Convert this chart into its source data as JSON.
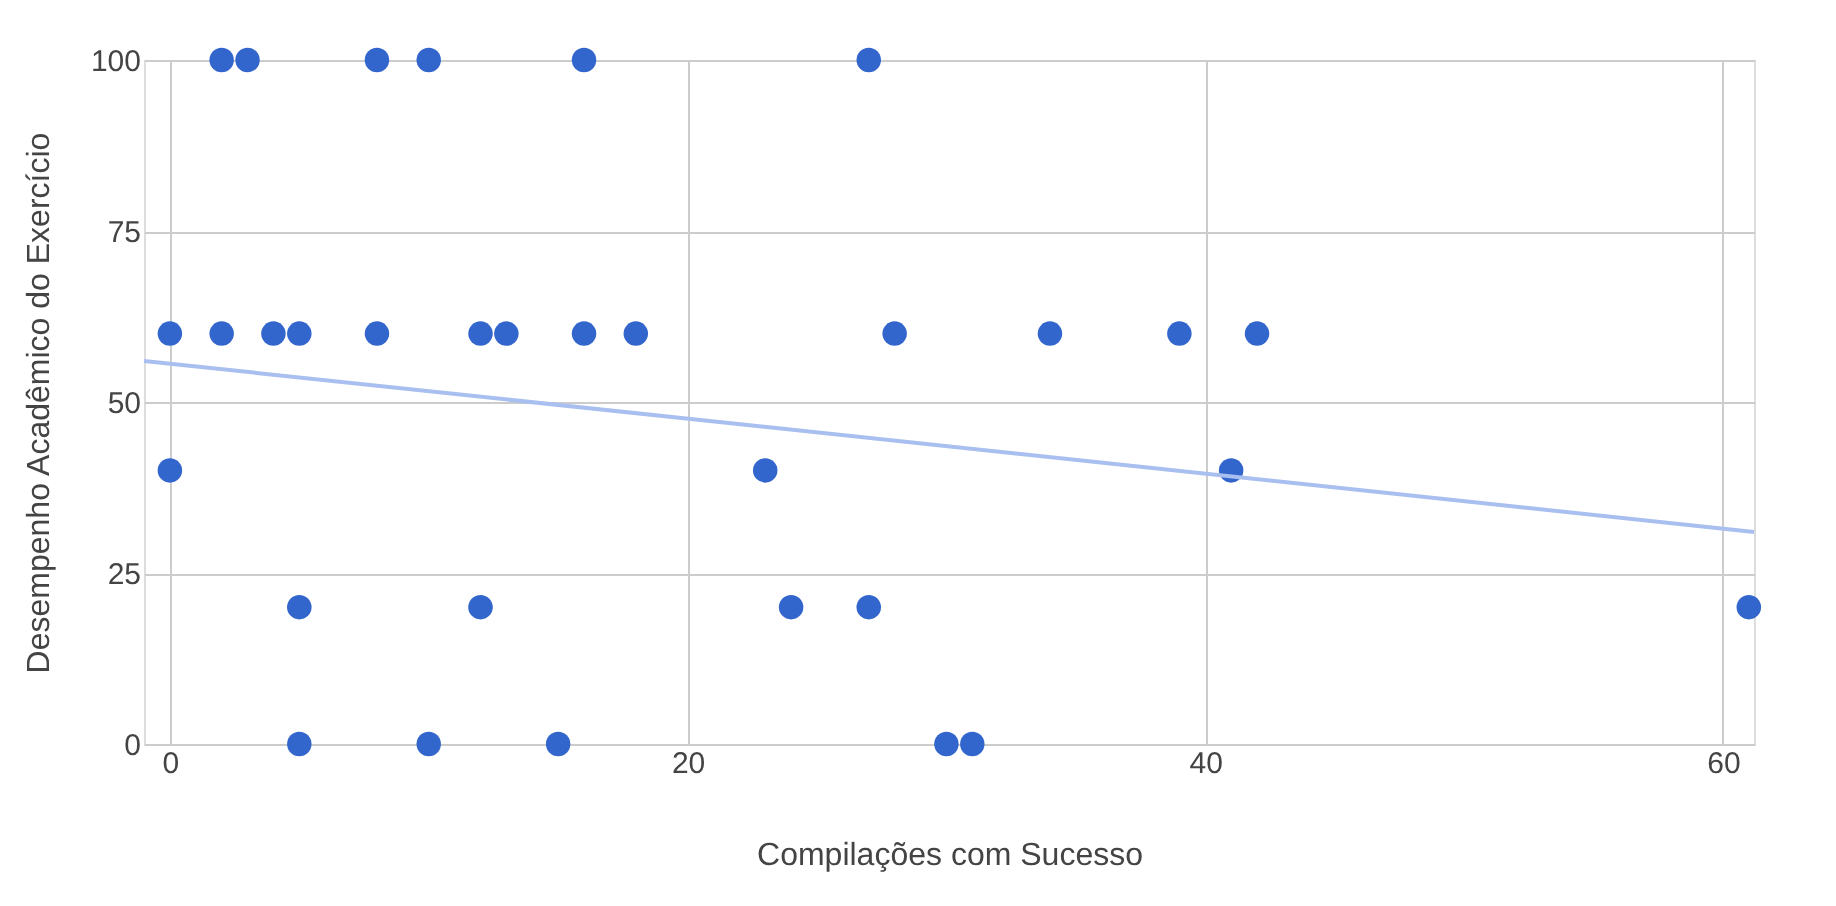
{
  "chart_data": {
    "type": "scatter",
    "xlabel": "Compilações com Sucesso",
    "ylabel": "Desempenho Acadêmico do Exercício",
    "xlim": [
      -1,
      61.2
    ],
    "ylim": [
      0,
      100
    ],
    "xticks": [
      0,
      20,
      40,
      60
    ],
    "yticks": [
      0,
      25,
      50,
      75,
      100
    ],
    "grid": true,
    "legend": false,
    "series": [
      {
        "color": "#3366cc",
        "marker": "circle",
        "x": [
          2,
          3,
          8,
          10,
          16,
          27,
          0,
          2,
          4,
          5,
          8,
          12,
          13,
          16,
          18,
          28,
          34,
          39,
          42,
          0,
          23,
          41,
          5,
          12,
          24,
          27,
          61,
          5,
          10,
          15,
          30,
          31
        ],
        "values": [
          100,
          100,
          100,
          100,
          100,
          100,
          60,
          60,
          60,
          60,
          60,
          60,
          60,
          60,
          60,
          60,
          60,
          60,
          60,
          40,
          40,
          40,
          20,
          20,
          20,
          20,
          20,
          0,
          0,
          0,
          0,
          0
        ]
      },
      {
        "type": "line",
        "color": "#a8bff0",
        "marker": "none",
        "x": [
          -1,
          61.2
        ],
        "values": [
          56,
          31
        ]
      }
    ]
  }
}
